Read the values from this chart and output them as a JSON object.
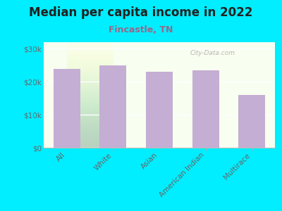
{
  "title": "Median per capita income in 2022",
  "subtitle": "Fincastle, TN",
  "categories": [
    "All",
    "White",
    "Asian",
    "American Indian",
    "Multirace"
  ],
  "values": [
    24000,
    25000,
    23000,
    23500,
    16000
  ],
  "bar_color": "#c4aed4",
  "background_outer": "#00eeff",
  "background_inner_top": "#e8f5d0",
  "background_inner_bottom": "#f8fef0",
  "title_color": "#222222",
  "subtitle_color": "#996688",
  "tick_label_color": "#666666",
  "yticks": [
    0,
    10000,
    20000,
    30000
  ],
  "ytick_labels": [
    "$0",
    "$10k",
    "$20k",
    "$30k"
  ],
  "ylim": [
    0,
    32000
  ],
  "watermark": "City-Data.com",
  "title_fontsize": 12,
  "subtitle_fontsize": 9,
  "tick_fontsize": 7.5
}
